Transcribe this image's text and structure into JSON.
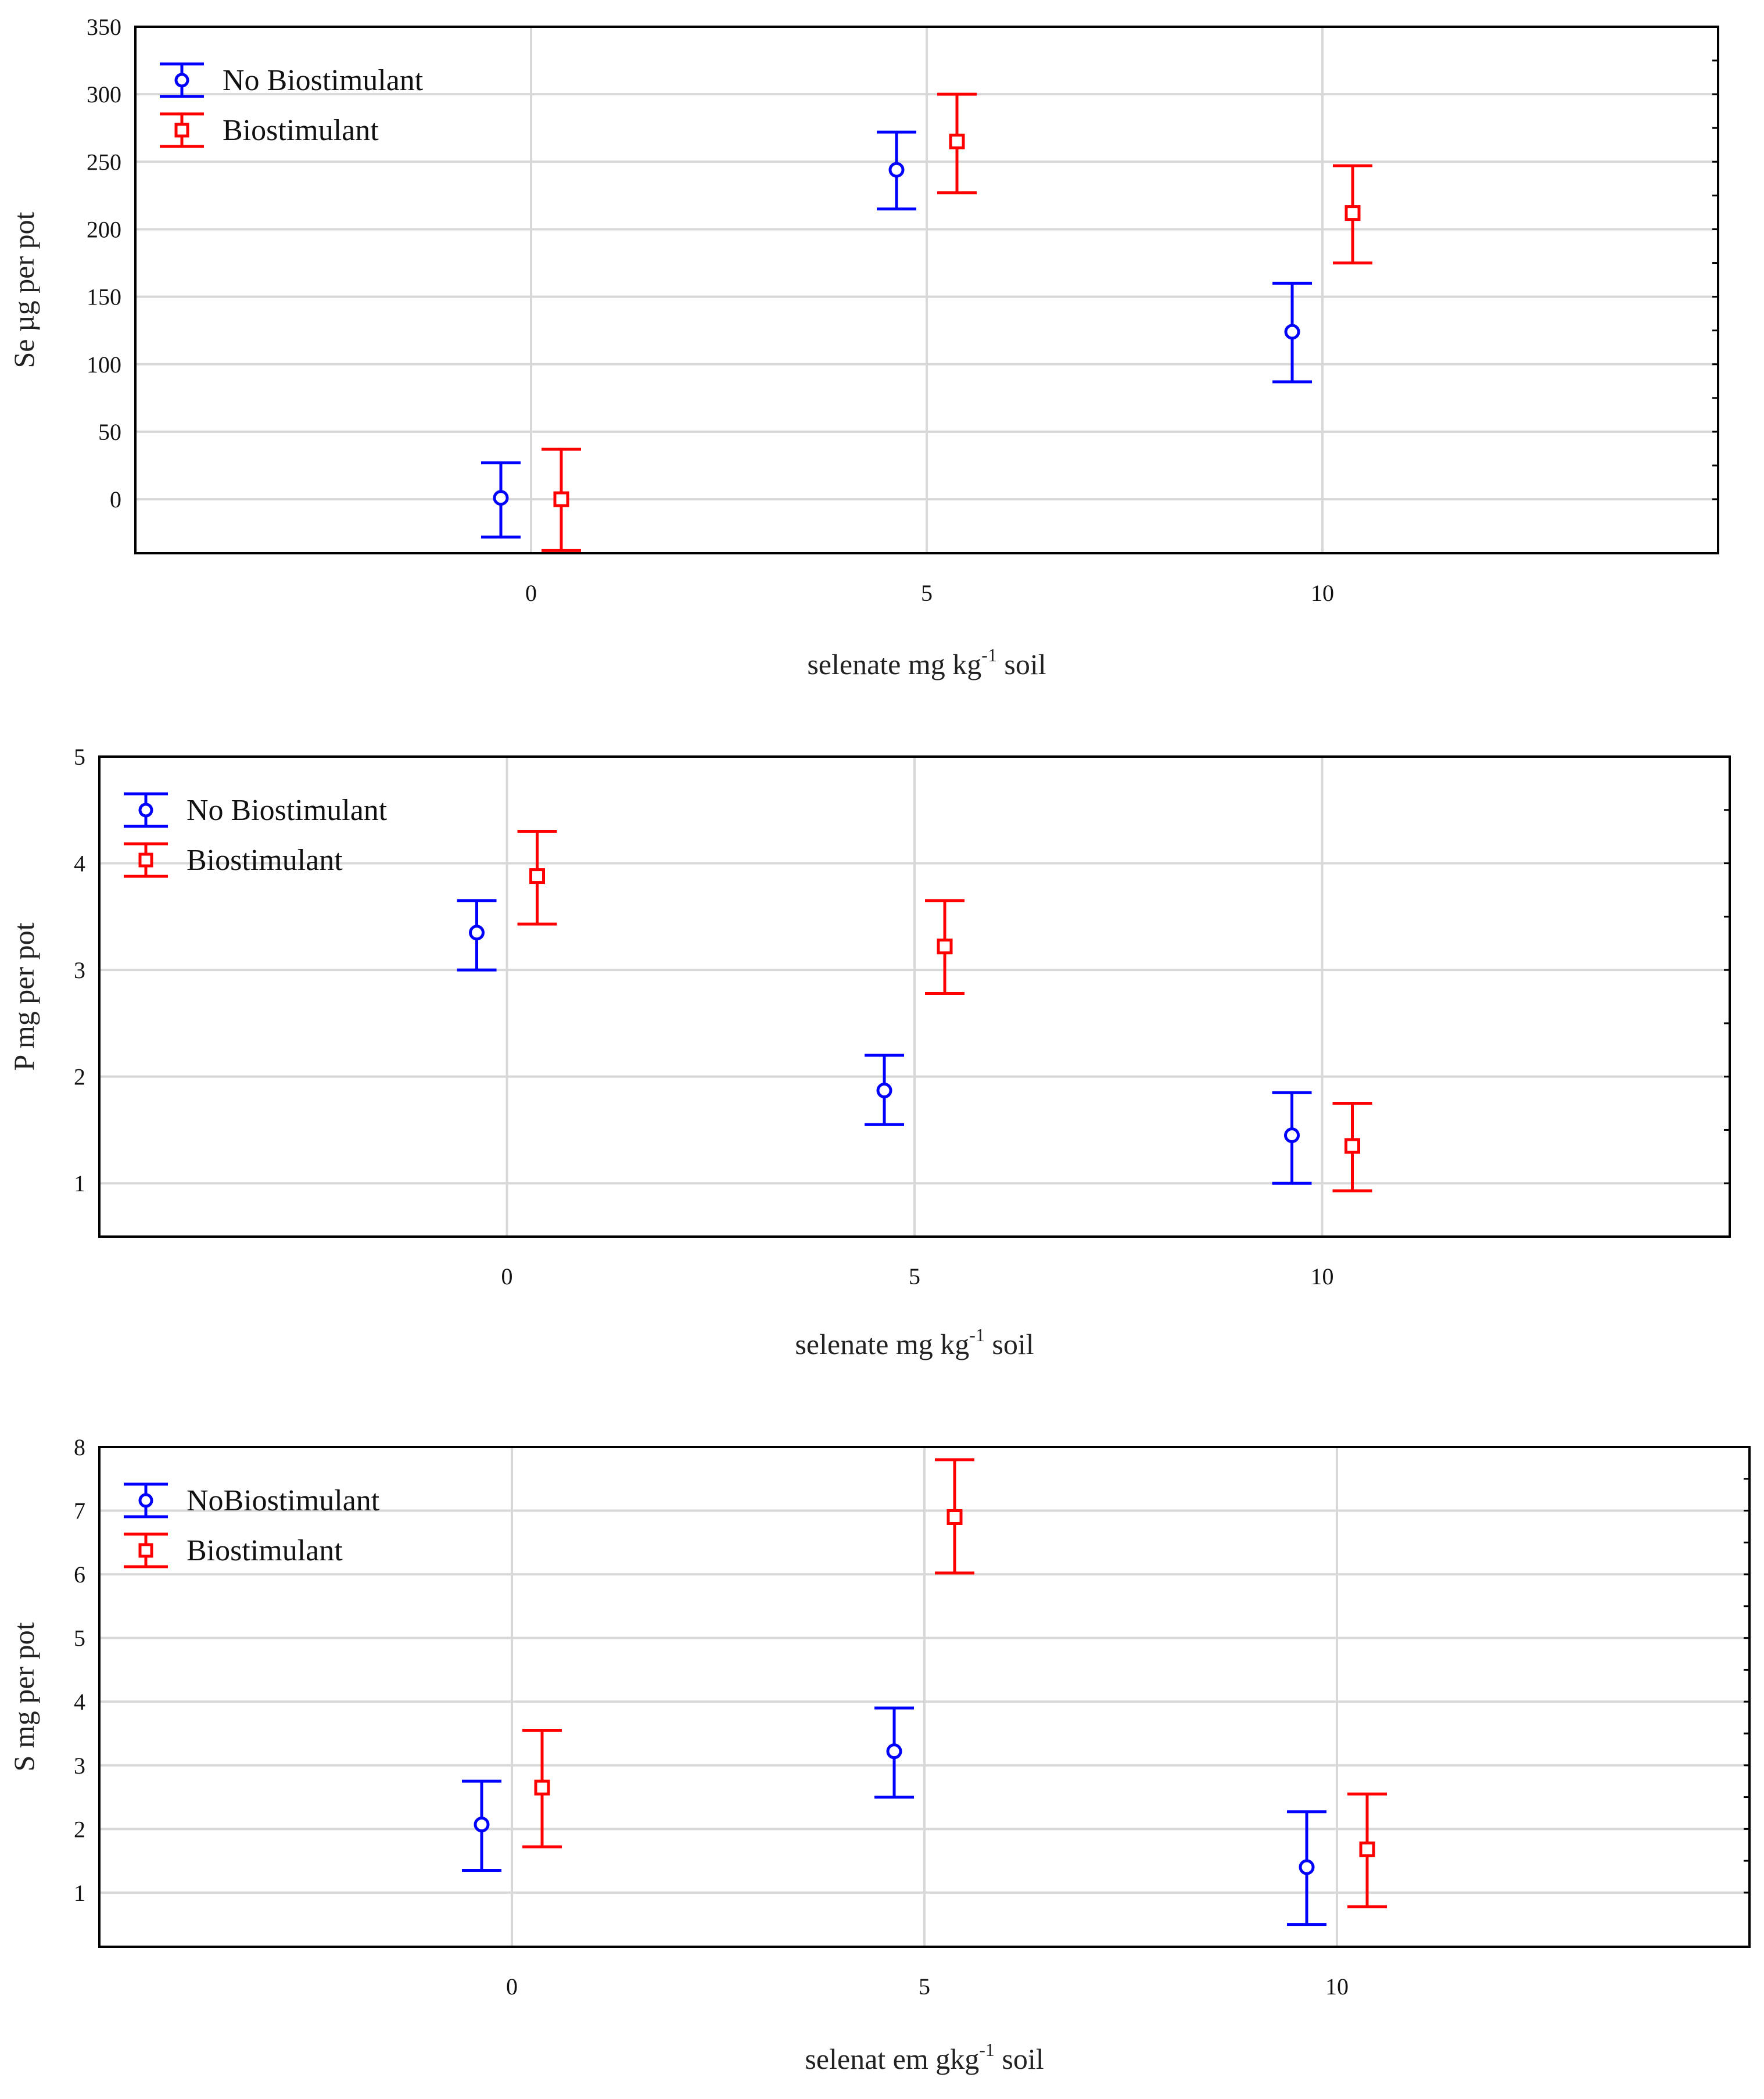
{
  "chart_data": [
    {
      "type": "scatter",
      "title": "",
      "xlabel": "selenate mg kg",
      "xlabel_sup": "-1",
      "xlabel_tail": " soil",
      "ylabel": "Se µg per pot",
      "xlim": [
        -5,
        15
      ],
      "ylim": [
        -40,
        350
      ],
      "x_ticks": [
        0,
        5,
        10
      ],
      "x_tick_labels": [
        "0",
        "5",
        "10"
      ],
      "y_ticks": [
        0,
        50,
        100,
        150,
        200,
        250,
        300,
        350
      ],
      "y_tick_labels": [
        "0",
        "50",
        "100",
        "150",
        "200",
        "250",
        "300",
        "350"
      ],
      "grid": true,
      "legend_position": "top-left",
      "series": [
        {
          "name": "No Biostimulant",
          "color": "#0000ff",
          "marker": "circle",
          "points": [
            {
              "x": 0,
              "y": 1,
              "low": -28,
              "high": 27
            },
            {
              "x": 5,
              "y": 244,
              "low": 215,
              "high": 272
            },
            {
              "x": 10,
              "y": 124,
              "low": 87,
              "high": 160
            }
          ]
        },
        {
          "name": "Biostimulant",
          "color": "#ff0000",
          "marker": "square",
          "points": [
            {
              "x": 0,
              "y": 0,
              "low": -38,
              "high": 37
            },
            {
              "x": 5,
              "y": 265,
              "low": 227,
              "high": 300
            },
            {
              "x": 10,
              "y": 212,
              "low": 175,
              "high": 247
            }
          ]
        }
      ]
    },
    {
      "type": "scatter",
      "title": "",
      "xlabel": "selenate mg kg",
      "xlabel_sup": "-1",
      "xlabel_tail": " soil",
      "ylabel": "P mg per pot",
      "xlim": [
        -5,
        15
      ],
      "ylim": [
        0.5,
        5
      ],
      "x_ticks": [
        0,
        5,
        10
      ],
      "x_tick_labels": [
        "0",
        "5",
        "10"
      ],
      "y_ticks": [
        1,
        2,
        3,
        4,
        5
      ],
      "y_tick_labels": [
        "1",
        "2",
        "3",
        "4",
        "5"
      ],
      "grid": true,
      "legend_position": "top-left",
      "series": [
        {
          "name": "No Biostimulant",
          "color": "#0000ff",
          "marker": "circle",
          "points": [
            {
              "x": 0,
              "y": 3.35,
              "low": 3.0,
              "high": 3.65
            },
            {
              "x": 5,
              "y": 1.87,
              "low": 1.55,
              "high": 2.2
            },
            {
              "x": 10,
              "y": 1.45,
              "low": 1.0,
              "high": 1.85
            }
          ]
        },
        {
          "name": "Biostimulant",
          "color": "#ff0000",
          "marker": "square",
          "points": [
            {
              "x": 0,
              "y": 3.88,
              "low": 3.43,
              "high": 4.3
            },
            {
              "x": 5,
              "y": 3.22,
              "low": 2.78,
              "high": 3.65
            },
            {
              "x": 10,
              "y": 1.35,
              "low": 0.93,
              "high": 1.75
            }
          ]
        }
      ]
    },
    {
      "type": "scatter",
      "title": "",
      "xlabel": "selenat em gkg",
      "xlabel_sup": "-1",
      "xlabel_tail": " soil",
      "ylabel": "S mg per pot",
      "xlim": [
        -5,
        15
      ],
      "ylim": [
        0.15,
        8
      ],
      "x_ticks": [
        0,
        5,
        10
      ],
      "x_tick_labels": [
        "0",
        "5",
        "10"
      ],
      "y_ticks": [
        1,
        2,
        3,
        4,
        5,
        6,
        7,
        8
      ],
      "y_tick_labels": [
        "1",
        "2",
        "3",
        "4",
        "5",
        "6",
        "7",
        "8"
      ],
      "grid": true,
      "legend_position": "top-left",
      "series": [
        {
          "name": "NoBiostimulant",
          "color": "#0000ff",
          "marker": "circle",
          "points": [
            {
              "x": 0,
              "y": 2.07,
              "low": 1.35,
              "high": 2.75
            },
            {
              "x": 5,
              "y": 3.22,
              "low": 2.5,
              "high": 3.9
            },
            {
              "x": 10,
              "y": 1.4,
              "low": 0.5,
              "high": 2.27
            }
          ]
        },
        {
          "name": "Biostimulant",
          "color": "#ff0000",
          "marker": "square",
          "points": [
            {
              "x": 0,
              "y": 2.65,
              "low": 1.72,
              "high": 3.55
            },
            {
              "x": 5,
              "y": 6.9,
              "low": 6.02,
              "high": 7.8
            },
            {
              "x": 10,
              "y": 1.68,
              "low": 0.78,
              "high": 2.55
            }
          ]
        }
      ]
    }
  ]
}
